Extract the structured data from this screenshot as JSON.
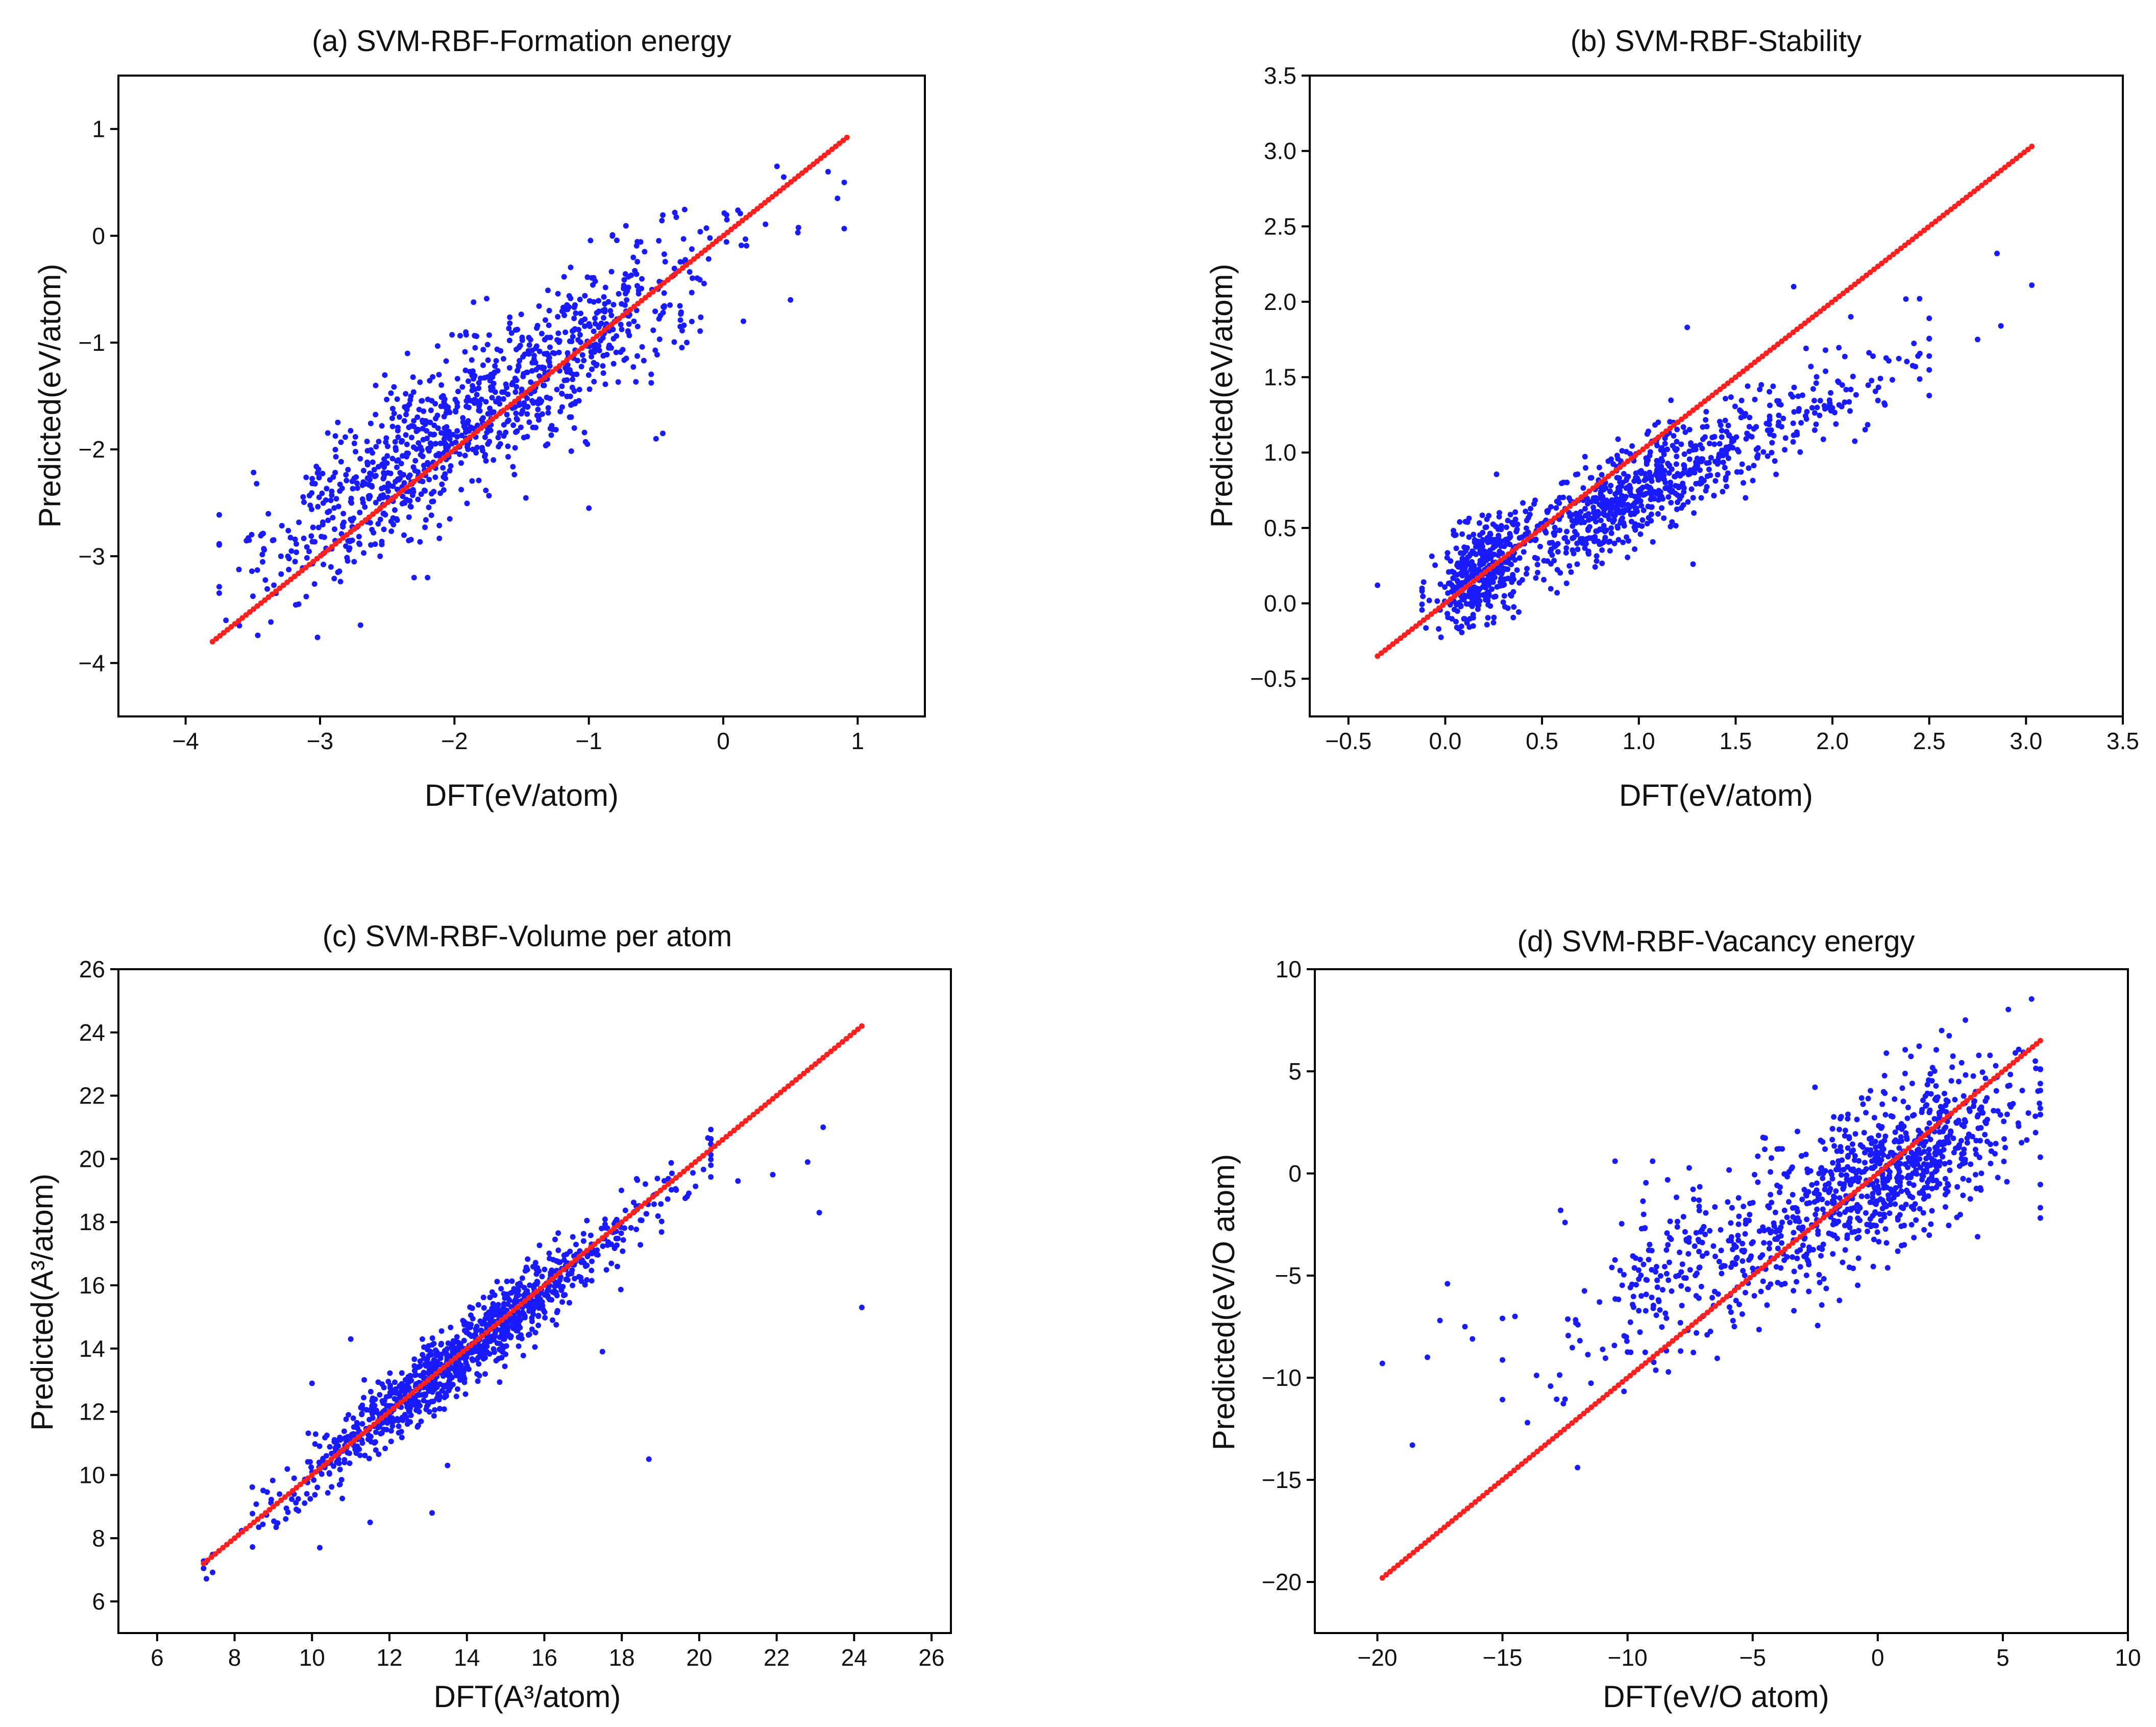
{
  "figure": {
    "colors": {
      "observed_points": "#1a1aff",
      "ideal_line": "#ff2020",
      "axes": "#000000"
    }
  },
  "chart_data": [
    {
      "id": "a",
      "type": "scatter",
      "title": "(a) SVM-RBF-Formation energy",
      "xlabel": "DFT(eV/atom)",
      "ylabel": "Predicted(eV/atom)",
      "xlim": [
        -4.5,
        1.5
      ],
      "ylim": [
        -4.5,
        1.5
      ],
      "xticks": [
        -4,
        -3,
        -2,
        -1,
        0,
        1
      ],
      "xticklabels": [
        "−4",
        "−3",
        "−2",
        "−1",
        "0",
        "1"
      ],
      "yticks": [
        -4,
        -3,
        -2,
        -1,
        0,
        1
      ],
      "yticklabels": [
        "−4",
        "−3",
        "−2",
        "−1",
        "0",
        "1"
      ],
      "ideal_line": {
        "from": -3.8,
        "to": 0.92,
        "color": "#ff2020"
      },
      "series": [
        {
          "name": "predicted",
          "color": "#1a1aff",
          "generator": {
            "count": 1050,
            "x_distribution": "mixture",
            "x_components": [
              {
                "mean": -2.3,
                "sd": 0.55,
                "weight": 0.55
              },
              {
                "mean": -1.1,
                "sd": 0.6,
                "weight": 0.45
              }
            ],
            "x_range": [
              -3.75,
              0.9
            ],
            "slope": 0.82,
            "intercept": -0.15,
            "noise_sd": 0.38
          },
          "extra_points": [
            {
              "x": 0.4,
              "y": 0.65
            },
            {
              "x": 0.45,
              "y": 0.55
            },
            {
              "x": 0.78,
              "y": 0.6
            },
            {
              "x": 0.85,
              "y": 0.35
            },
            {
              "x": 0.9,
              "y": 0.5
            },
            {
              "x": 0.5,
              "y": -0.6
            },
            {
              "x": -3.7,
              "y": -3.6
            },
            {
              "x": -3.6,
              "y": -3.65
            },
            {
              "x": -0.5,
              "y": -1.9
            },
            {
              "x": -0.45,
              "y": -1.85
            },
            {
              "x": -2.3,
              "y": -3.2
            },
            {
              "x": -2.2,
              "y": -3.2
            },
            {
              "x": -1.0,
              "y": -2.55
            },
            {
              "x": 0.15,
              "y": -0.8
            }
          ]
        }
      ]
    },
    {
      "id": "b",
      "type": "scatter",
      "title": "(b) SVM-RBF-Stability",
      "xlabel": "DFT(eV/atom)",
      "ylabel": "Predicted(eV/atom)",
      "xlim": [
        -0.7,
        3.5
      ],
      "ylim": [
        -0.75,
        3.5
      ],
      "xticks": [
        -0.5,
        0.0,
        0.5,
        1.0,
        1.5,
        2.0,
        2.5,
        3.0,
        3.5
      ],
      "xticklabels": [
        "−0.5",
        "0.0",
        "0.5",
        "1.0",
        "1.5",
        "2.0",
        "2.5",
        "3.0",
        "3.5"
      ],
      "yticks": [
        -0.5,
        0.0,
        0.5,
        1.0,
        1.5,
        2.0,
        2.5,
        3.0,
        3.5
      ],
      "yticklabels": [
        "−0.5",
        "0.0",
        "0.5",
        "1.0",
        "1.5",
        "2.0",
        "2.5",
        "3.0",
        "3.5"
      ],
      "ideal_line": {
        "from": -0.35,
        "to": 3.03,
        "color": "#ff2020"
      },
      "series": [
        {
          "name": "predicted",
          "color": "#1a1aff",
          "generator": {
            "count": 1150,
            "x_distribution": "mixture",
            "x_components": [
              {
                "mean": 0.18,
                "sd": 0.12,
                "weight": 0.32
              },
              {
                "mean": 0.95,
                "sd": 0.35,
                "weight": 0.56
              },
              {
                "mean": 1.9,
                "sd": 0.35,
                "weight": 0.12
              }
            ],
            "x_range": [
              -0.12,
              2.5
            ],
            "slope": 0.62,
            "intercept": 0.12,
            "noise_sd": 0.16
          },
          "extra_points": [
            {
              "x": 2.85,
              "y": 2.32
            },
            {
              "x": 2.87,
              "y": 1.84
            },
            {
              "x": 3.03,
              "y": 2.11
            },
            {
              "x": 2.75,
              "y": 1.75
            },
            {
              "x": 1.28,
              "y": 0.26
            },
            {
              "x": 1.8,
              "y": 2.1
            },
            {
              "x": -0.35,
              "y": 0.12
            },
            {
              "x": 1.25,
              "y": 1.83
            },
            {
              "x": 2.45,
              "y": 2.02
            }
          ]
        }
      ]
    },
    {
      "id": "c",
      "type": "scatter",
      "title": "(c) SVM-RBF-Volume per atom",
      "xlabel": "DFT(A³/atom)",
      "ylabel": "Predicted(A³/atom)",
      "xlim": [
        5,
        26.5
      ],
      "ylim": [
        5,
        26
      ],
      "xticks": [
        6,
        8,
        10,
        12,
        14,
        16,
        18,
        20,
        22,
        24,
        26
      ],
      "xticklabels": [
        "6",
        "8",
        "10",
        "12",
        "14",
        "16",
        "18",
        "20",
        "22",
        "24",
        "26"
      ],
      "yticks": [
        6,
        8,
        10,
        12,
        14,
        16,
        18,
        20,
        22,
        24,
        26
      ],
      "yticklabels": [
        "6",
        "8",
        "10",
        "12",
        "14",
        "16",
        "18",
        "20",
        "22",
        "24",
        "26"
      ],
      "ideal_line": {
        "from": 7.2,
        "to": 24.2,
        "color": "#ff2020"
      },
      "series": [
        {
          "name": "predicted",
          "color": "#1a1aff",
          "generator": {
            "count": 1100,
            "x_distribution": "mixture",
            "x_components": [
              {
                "mean": 13.8,
                "sd": 2.4,
                "weight": 1.0
              }
            ],
            "x_range": [
              7.2,
              20.3
            ],
            "slope": 0.97,
            "intercept": 0.35,
            "noise_sd": 0.55
          },
          "extra_points": [
            {
              "x": 18.7,
              "y": 10.5
            },
            {
              "x": 21.0,
              "y": 19.3
            },
            {
              "x": 21.9,
              "y": 19.5
            },
            {
              "x": 22.8,
              "y": 19.9
            },
            {
              "x": 23.1,
              "y": 18.3
            },
            {
              "x": 23.2,
              "y": 21.0
            },
            {
              "x": 24.2,
              "y": 15.3
            },
            {
              "x": 10.2,
              "y": 7.7
            },
            {
              "x": 11.5,
              "y": 8.5
            },
            {
              "x": 13.1,
              "y": 8.8
            },
            {
              "x": 13.5,
              "y": 10.3
            },
            {
              "x": 17.5,
              "y": 13.9
            },
            {
              "x": 10.0,
              "y": 12.9
            },
            {
              "x": 11.0,
              "y": 14.3
            }
          ]
        }
      ]
    },
    {
      "id": "d",
      "type": "scatter",
      "title": "(d) SVM-RBF-Vacancy energy",
      "xlabel": "DFT(eV/O atom)",
      "ylabel": "Predicted(eV/O atom)",
      "xlim": [
        -22.5,
        10
      ],
      "ylim": [
        -22.5,
        10
      ],
      "xticks": [
        -20,
        -15,
        -10,
        -5,
        0,
        5,
        10
      ],
      "xticklabels": [
        "−20",
        "−15",
        "−10",
        "−5",
        "0",
        "5",
        "10"
      ],
      "yticks": [
        -20,
        -15,
        -10,
        -5,
        0,
        5,
        10
      ],
      "yticklabels": [
        "−20",
        "−15",
        "−10",
        "−5",
        "0",
        "5",
        "10"
      ],
      "ideal_line": {
        "from": -19.8,
        "to": 6.5,
        "color": "#ff2020"
      },
      "series": [
        {
          "name": "predicted",
          "color": "#1a1aff",
          "generator": {
            "count": 1050,
            "x_distribution": "mixture",
            "x_components": [
              {
                "mean": 0.5,
                "sd": 2.6,
                "weight": 0.75
              },
              {
                "mean": -7.0,
                "sd": 3.0,
                "weight": 0.25
              }
            ],
            "x_range": [
              -15,
              6.5
            ],
            "slope": 0.6,
            "intercept": -0.2,
            "noise_sd": 2.0
          },
          "extra_points": [
            {
              "x": -19.8,
              "y": -9.3
            },
            {
              "x": -18.6,
              "y": -13.3
            },
            {
              "x": -17.2,
              "y": -5.4
            },
            {
              "x": -17.5,
              "y": -7.2
            },
            {
              "x": -16.5,
              "y": -7.5
            },
            {
              "x": -16.2,
              "y": -8.1
            },
            {
              "x": -18.0,
              "y": -9.0
            },
            {
              "x": -12.0,
              "y": -14.4
            },
            {
              "x": -14.0,
              "y": -12.2
            },
            {
              "x": -10.5,
              "y": 0.6
            },
            {
              "x": -9.0,
              "y": 0.6
            },
            {
              "x": 5.5,
              "y": 5.9
            },
            {
              "x": 6.3,
              "y": 5.5
            },
            {
              "x": 6.3,
              "y": 2.8
            },
            {
              "x": 4.8,
              "y": -0.2
            },
            {
              "x": -12.5,
              "y": -2.4
            },
            {
              "x": -14.5,
              "y": -7.0
            }
          ]
        }
      ]
    }
  ]
}
